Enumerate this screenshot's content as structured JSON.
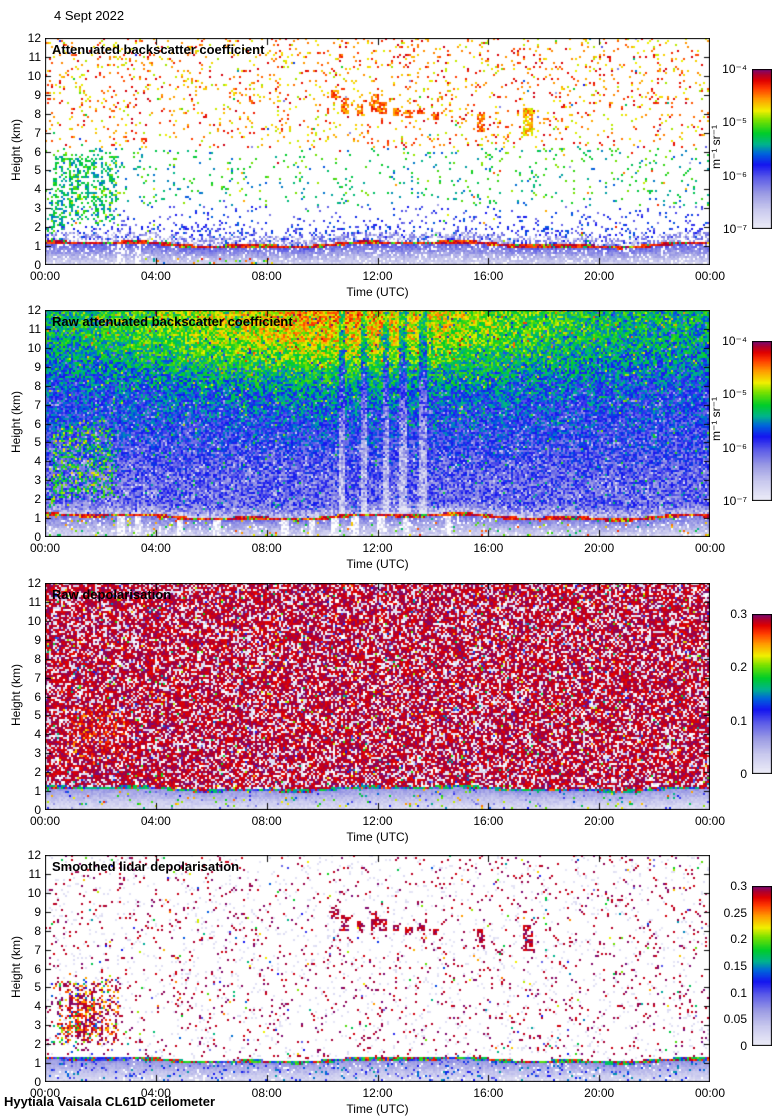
{
  "page": {
    "date_label": "4 Sept 2022",
    "footer": "Hyytiala Vaisala CL61D ceilometer"
  },
  "colors": {
    "background": "#ffffff",
    "axis": "#000000",
    "text": "#000000",
    "colormap_stops": [
      [
        0.0,
        "#ededf8"
      ],
      [
        0.12,
        "#c9c9ee"
      ],
      [
        0.22,
        "#9b9be4"
      ],
      [
        0.32,
        "#5a5ae8"
      ],
      [
        0.4,
        "#1414f0"
      ],
      [
        0.47,
        "#0064dc"
      ],
      [
        0.53,
        "#00b48c"
      ],
      [
        0.6,
        "#00cd28"
      ],
      [
        0.68,
        "#78e100"
      ],
      [
        0.74,
        "#f0f000"
      ],
      [
        0.81,
        "#ffa000"
      ],
      [
        0.88,
        "#ff3c00"
      ],
      [
        0.93,
        "#e00000"
      ],
      [
        0.97,
        "#aa0032"
      ],
      [
        1.0,
        "#780a78"
      ]
    ]
  },
  "chart_data": [
    {
      "type": "heatmap",
      "title": "Attenuated backscatter coefficient",
      "xlabel": "Time (UTC)",
      "ylabel": "Height (km)",
      "xlim_hours": [
        0,
        24
      ],
      "ylim_km": [
        0,
        12
      ],
      "x_ticks": [
        {
          "label": "00:00",
          "hour": 0
        },
        {
          "label": "04:00",
          "hour": 4
        },
        {
          "label": "08:00",
          "hour": 8
        },
        {
          "label": "12:00",
          "hour": 12
        },
        {
          "label": "16:00",
          "hour": 16
        },
        {
          "label": "20:00",
          "hour": 20
        },
        {
          "label": "00:00",
          "hour": 24
        }
      ],
      "y_ticks": [
        0,
        1,
        2,
        3,
        4,
        5,
        6,
        7,
        8,
        9,
        10,
        11,
        12
      ],
      "colorbar": {
        "label": "m⁻¹ sr⁻¹",
        "scale": "log",
        "range": [
          "1e-7",
          "1e-4"
        ],
        "ticks": [
          {
            "label": "10⁻⁴",
            "f": 0
          },
          {
            "label": "10⁻⁵",
            "f": 0.3333
          },
          {
            "label": "10⁻⁶",
            "f": 0.6667
          },
          {
            "label": "10⁻⁷",
            "f": 1
          }
        ]
      },
      "features": {
        "boundary_layer": "aerosol boundary layer below ~1.0-1.3 km, strong (red) backscatter at its top edge",
        "clouds": "green cloud/precipitation streaks 1.5-6 km between 00:00 and 02:45",
        "cirrus": "orange-red thin layers 7-9 km between 10:30 and 17:30, bright cell at ~17:30"
      },
      "render": {
        "style": "sparse-backscatter",
        "seed": 11,
        "bl": {
          "base": 1.12,
          "amp1": 0.12,
          "amp2": 0.06
        },
        "bl_gaps": [
          2.75,
          3.35
        ],
        "clouds": [
          {
            "t0": 0.15,
            "t1": 2.7,
            "h0": 2.0,
            "h1": 6.2,
            "d": 0.6,
            "ph": 0.0
          },
          {
            "t0": 0.0,
            "t1": 0.9,
            "h0": 1.4,
            "h1": 3.6,
            "d": 0.5,
            "ph": 1.2
          }
        ],
        "cirrus": [
          {
            "t": 10.45,
            "h0": 8.6,
            "h1": 9.25
          },
          {
            "t": 10.8,
            "h0": 8.0,
            "h1": 8.8
          },
          {
            "t": 11.35,
            "h0": 7.9,
            "h1": 8.55
          },
          {
            "t": 11.9,
            "h0": 8.1,
            "h1": 9.1
          },
          {
            "t": 12.2,
            "h0": 8.0,
            "h1": 8.6
          },
          {
            "t": 12.65,
            "h0": 7.9,
            "h1": 8.3
          },
          {
            "t": 13.1,
            "h0": 7.8,
            "h1": 8.25
          },
          {
            "t": 13.55,
            "h0": 7.95,
            "h1": 8.3
          },
          {
            "t": 14.1,
            "h0": 7.7,
            "h1": 8.1
          },
          {
            "t": 15.7,
            "h0": 7.0,
            "h1": 8.1,
            "dt": 0.16
          },
          {
            "t": 17.4,
            "h0": 6.8,
            "h1": 8.3,
            "dt": 0.2,
            "c": [
              0.7,
              0.86
            ]
          }
        ]
      }
    },
    {
      "type": "heatmap",
      "title": "Raw attenuated backscatter coefficient",
      "xlabel": "Time (UTC)",
      "ylabel": "Height (km)",
      "xlim_hours": [
        0,
        24
      ],
      "ylim_km": [
        0,
        12
      ],
      "x_ticks": [
        {
          "label": "00:00",
          "hour": 0
        },
        {
          "label": "04:00",
          "hour": 4
        },
        {
          "label": "08:00",
          "hour": 8
        },
        {
          "label": "12:00",
          "hour": 12
        },
        {
          "label": "16:00",
          "hour": 16
        },
        {
          "label": "20:00",
          "hour": 20
        },
        {
          "label": "00:00",
          "hour": 24
        }
      ],
      "y_ticks": [
        0,
        1,
        2,
        3,
        4,
        5,
        6,
        7,
        8,
        9,
        10,
        11,
        12
      ],
      "colorbar": {
        "label": "m⁻¹ sr⁻¹",
        "scale": "log",
        "range": [
          "1e-7",
          "1e-4"
        ],
        "ticks": [
          {
            "label": "10⁻⁴",
            "f": 0
          },
          {
            "label": "10⁻⁵",
            "f": 0.3333
          },
          {
            "label": "10⁻⁶",
            "f": 0.6667
          },
          {
            "label": "10⁻⁷",
            "f": 1
          }
        ]
      },
      "features": {
        "noise": "dense speckle noise everywhere: blue at low/mid heights, green aloft, orange-red patch 8-12 km between ~05:00-16:00",
        "boundary_layer": "pale layer below ~1.2 km with dark-red top line, white gap columns",
        "clouds": "green cloud streaks 1.5-6 km before 02:45"
      },
      "render": {
        "style": "dense-backscatter",
        "seed": 22,
        "bl": {
          "base": 1.1,
          "amp1": 0.12,
          "amp2": 0.06
        },
        "bl_gaps": [
          2.75,
          3.35,
          4.85,
          6.2,
          8.65,
          9.6,
          10.45,
          11.2,
          12.1,
          13.0,
          14.5
        ],
        "light_streaks": [
          10.7,
          11.5,
          12.3,
          12.9,
          13.6
        ],
        "hot": {
          "t": 10.5,
          "h": 12.0,
          "st": 55,
          "sh": 16,
          "a": 0.27
        },
        "clouds": [
          {
            "t0": 0.15,
            "t1": 2.7,
            "h0": 2.0,
            "h1": 6.2,
            "d": 0.6,
            "ph": 0.0
          },
          {
            "t0": 0.0,
            "t1": 0.9,
            "h0": 1.4,
            "h1": 3.6,
            "d": 0.5,
            "ph": 1.2
          }
        ]
      }
    },
    {
      "type": "heatmap",
      "title": "Raw depolarisation",
      "xlabel": "Time (UTC)",
      "ylabel": "Height (km)",
      "xlim_hours": [
        0,
        24
      ],
      "ylim_km": [
        0,
        12
      ],
      "x_ticks": [
        {
          "label": "00:00",
          "hour": 0
        },
        {
          "label": "04:00",
          "hour": 4
        },
        {
          "label": "08:00",
          "hour": 8
        },
        {
          "label": "12:00",
          "hour": 12
        },
        {
          "label": "16:00",
          "hour": 16
        },
        {
          "label": "20:00",
          "hour": 20
        },
        {
          "label": "00:00",
          "hour": 24
        }
      ],
      "y_ticks": [
        0,
        1,
        2,
        3,
        4,
        5,
        6,
        7,
        8,
        9,
        10,
        11,
        12
      ],
      "colorbar": {
        "label": "",
        "scale": "linear",
        "range": [
          0,
          0.3
        ],
        "ticks": [
          {
            "label": "0.3",
            "f": 0
          },
          {
            "label": "0.2",
            "f": 0.3333
          },
          {
            "label": "0.1",
            "f": 0.6667
          },
          {
            "label": "0",
            "f": 1
          }
        ]
      },
      "features": {
        "noise": "saturated dark-purple depolarisation noise above the boundary layer with pale gaps and rare colour speckles",
        "boundary_layer": "pale blue layer below ~1.2 km, green/cyan line at its top",
        "cluster": "dark-red patch 2.5-5.5 km between ~01:00 and 03:00"
      },
      "render": {
        "style": "dense-depol",
        "seed": 33,
        "bl": {
          "base": 1.15,
          "amp1": 0.1,
          "amp2": 0.05
        },
        "clouds": [
          {
            "t0": 0.8,
            "t1": 3.1,
            "h0": 2.4,
            "h1": 5.6,
            "d": 0.5,
            "ph": 2.0
          }
        ]
      }
    },
    {
      "type": "heatmap",
      "title": "Smoothed lidar depolarisation",
      "xlabel": "Time (UTC)",
      "ylabel": "Height (km)",
      "xlim_hours": [
        0,
        24
      ],
      "ylim_km": [
        0,
        12
      ],
      "x_ticks": [
        {
          "label": "00:00",
          "hour": 0
        },
        {
          "label": "04:00",
          "hour": 4
        },
        {
          "label": "08:00",
          "hour": 8
        },
        {
          "label": "12:00",
          "hour": 12
        },
        {
          "label": "16:00",
          "hour": 16
        },
        {
          "label": "20:00",
          "hour": 20
        },
        {
          "label": "00:00",
          "hour": 24
        }
      ],
      "y_ticks": [
        0,
        1,
        2,
        3,
        4,
        5,
        6,
        7,
        8,
        9,
        10,
        11,
        12
      ],
      "colorbar": {
        "label": "",
        "scale": "linear",
        "range": [
          0,
          0.3
        ],
        "ticks": [
          {
            "label": "0.3",
            "f": 0
          },
          {
            "label": "0.25",
            "f": 0.1667
          },
          {
            "label": "0.2",
            "f": 0.3333
          },
          {
            "label": "0.15",
            "f": 0.5
          },
          {
            "label": "0.1",
            "f": 0.6667
          },
          {
            "label": "0.05",
            "f": 0.8333
          },
          {
            "label": "0",
            "f": 1
          }
        ]
      },
      "features": {
        "background": "mostly white with sparse dark-purple speckles",
        "cluster": "dense purple blobs with red-orange core 2-5.5 km between 00:15 and 02:45",
        "cirrus": "purple streaks 7-9 km between 10:30 and 17:30",
        "boundary_layer": "pale blue layer below ~1.3 km, green+red line at its top after ~03:00"
      },
      "render": {
        "style": "sparse-depol",
        "seed": 44,
        "bl": {
          "base": 1.18,
          "amp1": 0.1,
          "amp2": 0.05
        },
        "bl_line_start": 3.2,
        "clouds": [
          {
            "t0": 0.75,
            "t1": 1.9,
            "h0": 2.4,
            "h1": 4.7,
            "d": 0.9,
            "ph": 0.5,
            "red": 1
          },
          {
            "t0": 0.25,
            "t1": 2.75,
            "h0": 1.8,
            "h1": 5.7,
            "d": 0.6,
            "ph": 1.3
          }
        ],
        "cirrus": [
          {
            "t": 10.45,
            "h0": 8.6,
            "h1": 9.25
          },
          {
            "t": 10.8,
            "h0": 8.0,
            "h1": 8.8
          },
          {
            "t": 11.35,
            "h0": 7.9,
            "h1": 8.55
          },
          {
            "t": 11.9,
            "h0": 8.1,
            "h1": 9.1
          },
          {
            "t": 12.2,
            "h0": 8.0,
            "h1": 8.6
          },
          {
            "t": 12.65,
            "h0": 7.9,
            "h1": 8.3
          },
          {
            "t": 13.1,
            "h0": 7.8,
            "h1": 8.25
          },
          {
            "t": 13.55,
            "h0": 7.95,
            "h1": 8.3
          },
          {
            "t": 14.1,
            "h0": 7.7,
            "h1": 8.1
          },
          {
            "t": 15.7,
            "h0": 7.0,
            "h1": 8.1,
            "dt": 0.16
          },
          {
            "t": 17.4,
            "h0": 6.9,
            "h1": 8.3,
            "dt": 0.2
          }
        ]
      }
    }
  ]
}
